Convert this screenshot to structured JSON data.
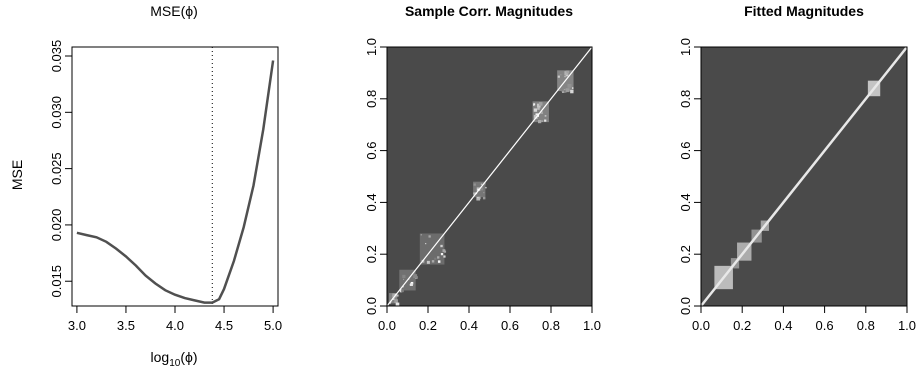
{
  "chart_data": [
    {
      "type": "line",
      "title": "MSE(ϕ)",
      "xlabel_base": "log",
      "xlabel_sub": "10",
      "xlabel_arg": "(ϕ)",
      "ylabel": "MSE",
      "xlim": [
        2.95,
        5.05
      ],
      "ylim": [
        0.0128,
        0.0358
      ],
      "x_ticks": [
        3.0,
        3.5,
        4.0,
        4.5,
        5.0
      ],
      "x_tick_labels": [
        "3.0",
        "3.5",
        "4.0",
        "4.5",
        "5.0"
      ],
      "y_ticks": [
        0.015,
        0.02,
        0.025,
        0.03,
        0.035
      ],
      "y_tick_labels": [
        "0.015",
        "0.020",
        "0.025",
        "0.030",
        "0.035"
      ],
      "vline_x": 4.38,
      "series": [
        {
          "x": [
            3.0,
            3.1,
            3.2,
            3.3,
            3.4,
            3.5,
            3.6,
            3.7,
            3.8,
            3.9,
            4.0,
            4.1,
            4.2,
            4.3,
            4.38,
            4.45,
            4.5,
            4.6,
            4.7,
            4.8,
            4.9,
            5.0
          ],
          "y": [
            0.0193,
            0.0191,
            0.0189,
            0.0185,
            0.0179,
            0.0172,
            0.0164,
            0.0155,
            0.0148,
            0.0142,
            0.0138,
            0.0135,
            0.0133,
            0.0131,
            0.0131,
            0.0134,
            0.0143,
            0.0168,
            0.0198,
            0.0235,
            0.0285,
            0.0346
          ]
        }
      ],
      "color": "#505050"
    },
    {
      "type": "heatmap",
      "title": "Sample Corr. Magnitudes",
      "xlim": [
        0.0,
        1.0
      ],
      "ylim": [
        0.0,
        1.0
      ],
      "x_tick_labels": [
        "0.0",
        "0.2",
        "0.4",
        "0.6",
        "0.8",
        "1.0"
      ],
      "y_tick_labels": [
        "0.0",
        "0.2",
        "0.4",
        "0.6",
        "0.8",
        "1.0"
      ],
      "background": "#4a4a4a",
      "blocks": [
        {
          "center": 0.03,
          "half_width": 0.02,
          "level": 0.55
        },
        {
          "center": 0.1,
          "half_width": 0.04,
          "level": 0.4
        },
        {
          "center": 0.22,
          "half_width": 0.06,
          "level": 0.35
        },
        {
          "center": 0.45,
          "half_width": 0.03,
          "level": 0.45
        },
        {
          "center": 0.75,
          "half_width": 0.04,
          "level": 0.55
        },
        {
          "center": 0.87,
          "half_width": 0.04,
          "level": 0.6
        }
      ]
    },
    {
      "type": "heatmap",
      "title": "Fitted Magnitudes",
      "xlim": [
        0.0,
        1.0
      ],
      "ylim": [
        0.0,
        1.0
      ],
      "x_tick_labels": [
        "0.0",
        "0.2",
        "0.4",
        "0.6",
        "0.8",
        "1.0"
      ],
      "y_tick_labels": [
        "0.0",
        "0.2",
        "0.4",
        "0.6",
        "0.8",
        "1.0"
      ],
      "background": "#4a4a4a",
      "blocks": [
        {
          "center": 0.11,
          "half_width": 0.045,
          "level": 0.7
        },
        {
          "center": 0.165,
          "half_width": 0.02,
          "level": 0.45
        },
        {
          "center": 0.21,
          "half_width": 0.035,
          "level": 0.6
        },
        {
          "center": 0.27,
          "half_width": 0.025,
          "level": 0.45
        },
        {
          "center": 0.31,
          "half_width": 0.02,
          "level": 0.55
        },
        {
          "center": 0.84,
          "half_width": 0.03,
          "level": 0.75
        }
      ]
    }
  ]
}
